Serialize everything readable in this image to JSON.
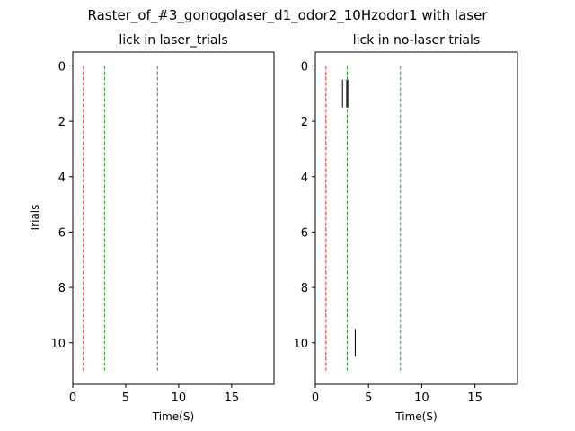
{
  "figure": {
    "title": "Raster_of_#3_gonogolaser_d1_odor2_10Hzodor1 with laser"
  },
  "chart_data": [
    {
      "type": "raster",
      "title": "lick in laser_trials",
      "xlabel": "Time(S)",
      "ylabel": "Trials",
      "xlim": [
        0,
        19
      ],
      "ylim": [
        11.5,
        -0.5
      ],
      "xticks": [
        0,
        5,
        10,
        15
      ],
      "yticks": [
        0,
        2,
        4,
        6,
        8,
        10
      ],
      "y_inverted": true,
      "vlines": [
        {
          "x": 1,
          "color": "#d62728",
          "style": "dashed"
        },
        {
          "x": 3,
          "color": "#2ca02c",
          "style": "dashed"
        },
        {
          "x": 8,
          "color": "#2ca02c",
          "style": "dashed"
        }
      ],
      "events": []
    },
    {
      "type": "raster",
      "title": "lick in no-laser trials",
      "xlabel": "Time(S)",
      "ylabel": "",
      "xlim": [
        0,
        19
      ],
      "ylim": [
        11.5,
        -0.5
      ],
      "xticks": [
        0,
        5,
        10,
        15
      ],
      "yticks": [
        0,
        2,
        4,
        6,
        8,
        10
      ],
      "y_inverted": true,
      "vlines": [
        {
          "x": 1,
          "color": "#d62728",
          "style": "dashed"
        },
        {
          "x": 3,
          "color": "#2ca02c",
          "style": "dashed"
        },
        {
          "x": 8,
          "color": "#2ca02c",
          "style": "dashed"
        }
      ],
      "events": [
        {
          "trial": 1,
          "t": 2.55
        },
        {
          "trial": 1,
          "t": 2.95
        },
        {
          "trial": 1,
          "t": 3.05
        },
        {
          "trial": 10,
          "t": 3.75
        }
      ]
    }
  ]
}
